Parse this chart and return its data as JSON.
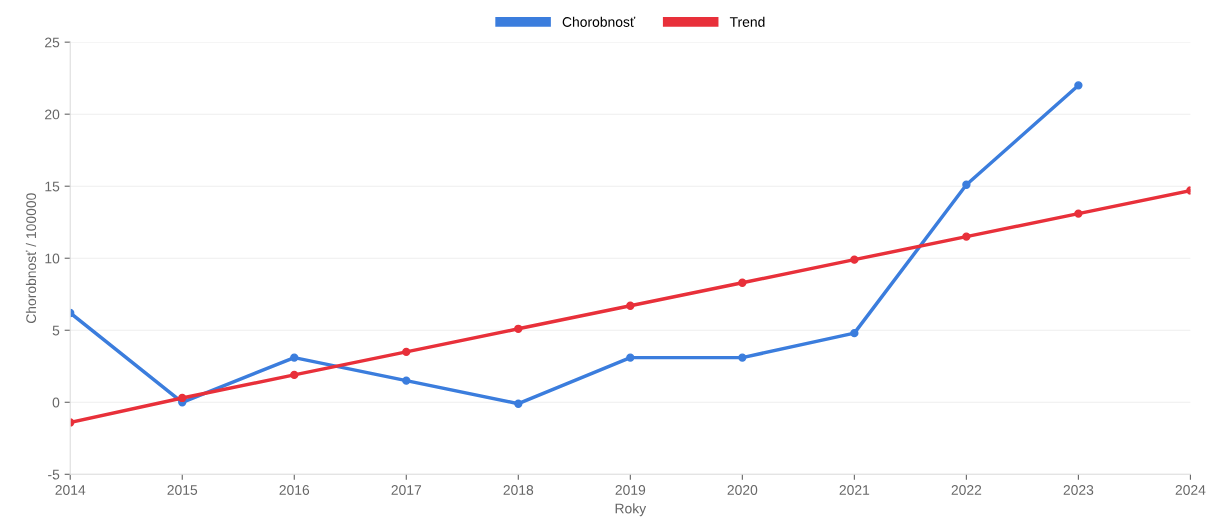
{
  "chart_data": {
    "type": "line",
    "xlabel": "Roky",
    "ylabel": "Chorobnosť / 100000",
    "categories": [
      "2014",
      "2015",
      "2016",
      "2017",
      "2018",
      "2019",
      "2020",
      "2021",
      "2022",
      "2023",
      "2024"
    ],
    "series": [
      {
        "name": "Chorobnosť",
        "color": "#3b7ddd",
        "values": [
          6.2,
          0,
          3.1,
          1.5,
          -0.1,
          3.1,
          3.1,
          4.8,
          15.1,
          22,
          null
        ]
      },
      {
        "name": "Trend",
        "color": "#e8303a",
        "values": [
          -1.4,
          0.3,
          1.9,
          3.5,
          5.1,
          6.7,
          8.3,
          9.9,
          11.5,
          13.1,
          14.7
        ]
      }
    ],
    "ylim": [
      -5,
      25
    ],
    "yticks": [
      -5,
      0,
      5,
      10,
      15,
      20,
      25
    ],
    "grid": "y",
    "legend": "top",
    "marker": "circle",
    "line_style": "solid"
  }
}
